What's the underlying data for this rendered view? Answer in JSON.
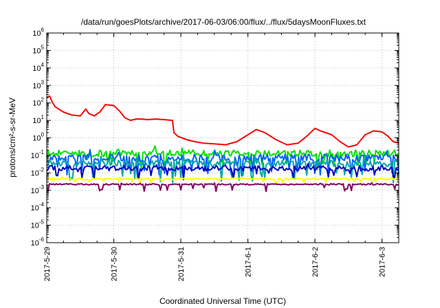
{
  "chart_data": {
    "type": "line",
    "title": "/data/run/goesPlots/archive/2017-06-03/06:00/flux/../flux/5daysMoonFluxes.txt",
    "xlabel": "Coordinated Universal Time (UTC)",
    "ylabel": "protons/cm²-s-sr-MeV",
    "y_scale": "log",
    "ylim": [
      1e-06,
      1000000.0
    ],
    "y_ticks": [
      {
        "value": 1e-06,
        "base": "10",
        "exp": "-6"
      },
      {
        "value": 1e-05,
        "base": "10",
        "exp": "-5"
      },
      {
        "value": 0.0001,
        "base": "10",
        "exp": "-4"
      },
      {
        "value": 0.001,
        "base": "10",
        "exp": "-3"
      },
      {
        "value": 0.01,
        "base": "10",
        "exp": "-2"
      },
      {
        "value": 0.1,
        "base": "10",
        "exp": "-1"
      },
      {
        "value": 1.0,
        "base": "10",
        "exp": "0"
      },
      {
        "value": 10.0,
        "base": "10",
        "exp": "1"
      },
      {
        "value": 100.0,
        "base": "10",
        "exp": "2"
      },
      {
        "value": 1000.0,
        "base": "10",
        "exp": "3"
      },
      {
        "value": 10000.0,
        "base": "10",
        "exp": "4"
      },
      {
        "value": 100000.0,
        "base": "10",
        "exp": "5"
      },
      {
        "value": 1000000.0,
        "base": "10",
        "exp": "6"
      }
    ],
    "xlim": [
      "2017-05-29 00:00",
      "2017-06-03 06:00"
    ],
    "x_ticks": [
      "2017-5-29",
      "2017-5-30",
      "2017-5-31",
      "2017-6-1",
      "2017-6-2",
      "2017-6-3"
    ],
    "x_tick_dates": [
      "2017-05-29",
      "2017-05-30",
      "2017-05-31",
      "2017-06-01",
      "2017-06-02",
      "2017-06-03"
    ],
    "grid": true,
    "series": [
      {
        "color": "#ff0000",
        "x": [
          "2017-05-29 00:00",
          "2017-05-29 01:00",
          "2017-05-29 02:00",
          "2017-05-29 03:00",
          "2017-05-29 06:00",
          "2017-05-29 09:00",
          "2017-05-29 12:00",
          "2017-05-29 14:00",
          "2017-05-29 15:00",
          "2017-05-29 17:00",
          "2017-05-29 19:00",
          "2017-05-29 21:00",
          "2017-05-30 00:00",
          "2017-05-30 02:00",
          "2017-05-30 04:00",
          "2017-05-30 06:00",
          "2017-05-30 08:00",
          "2017-05-30 10:00",
          "2017-05-30 12:00",
          "2017-05-30 15:00",
          "2017-05-30 18:00",
          "2017-05-30 21:00",
          "2017-05-30 21:30",
          "2017-05-30 23:00",
          "2017-05-31 02:00",
          "2017-05-31 05:00",
          "2017-05-31 08:00",
          "2017-05-31 12:00",
          "2017-05-31 16:00",
          "2017-05-31 20:00",
          "2017-06-01 00:00",
          "2017-06-01 03:00",
          "2017-06-01 06:00",
          "2017-06-01 10:00",
          "2017-06-01 14:00",
          "2017-06-01 18:00",
          "2017-06-01 21:00",
          "2017-06-02 00:00",
          "2017-06-02 02:00",
          "2017-06-02 06:00",
          "2017-06-02 09:00",
          "2017-06-02 12:00",
          "2017-06-02 15:00",
          "2017-06-02 18:00",
          "2017-06-02 21:00",
          "2017-06-03 00:00",
          "2017-06-03 02:00",
          "2017-06-03 04:00",
          "2017-06-03 06:00"
        ],
        "y": [
          200,
          250,
          110,
          60,
          30,
          20,
          18,
          45,
          25,
          18,
          30,
          80,
          70,
          35,
          14,
          10,
          12,
          12,
          11,
          12,
          11,
          10,
          2,
          1.2,
          0.8,
          0.6,
          0.5,
          0.45,
          0.4,
          0.6,
          1.5,
          3,
          2,
          0.8,
          0.4,
          0.5,
          1.2,
          3.5,
          2.5,
          1.5,
          0.6,
          0.3,
          0.4,
          1.5,
          2.5,
          2.2,
          1.3,
          0.6,
          0.5
        ]
      },
      {
        "color": "#00e000",
        "baseline": 0.13,
        "jitter": 0.65,
        "spike_depth": 0.8
      },
      {
        "color": "#0060ff",
        "baseline": 0.07,
        "jitter": 0.7,
        "spike_depth": 1.0
      },
      {
        "color": "#00a8a8",
        "baseline": 0.035,
        "jitter": 0.6,
        "spike_depth": 1.1
      },
      {
        "color": "#0000c0",
        "baseline": 0.018,
        "jitter": 0.5,
        "spike_depth": 0.6
      },
      {
        "color": "#ffff00",
        "baseline": 0.0045,
        "jitter": 0.15,
        "spike_depth": 0.2
      },
      {
        "color": "#800060",
        "baseline": 0.0022,
        "jitter": 0.12,
        "spike_depth": 0.4
      }
    ]
  }
}
